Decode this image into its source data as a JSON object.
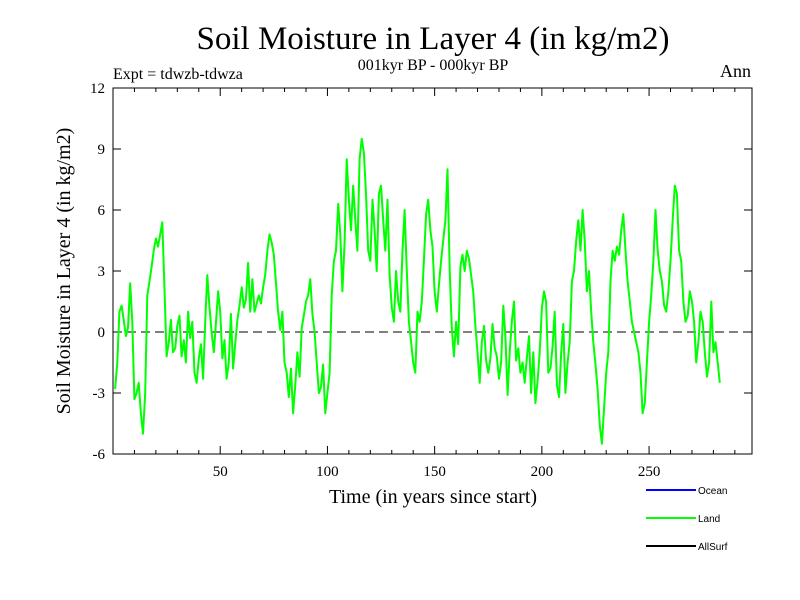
{
  "chart_data": {
    "type": "line",
    "title": "Soil Moisture in Layer 4 (in kg/m2)",
    "subtitle": "001kyr BP - 000kyr BP",
    "experiment_label": "Expt = tdwzb-tdwza",
    "season_label": "Ann",
    "xlabel": "Time (in years since start)",
    "ylabel": "Soil Moisture in Layer 4 (in kg/m2)",
    "xlim": [
      0,
      298
    ],
    "ylim": [
      -6,
      12
    ],
    "x_ticks": [
      50,
      100,
      150,
      200,
      250
    ],
    "y_ticks": [
      -6,
      -3,
      0,
      3,
      6,
      9,
      12
    ],
    "zero_line": true,
    "legend": [
      "Ocean",
      "Land",
      "AllSurf"
    ],
    "legend_position": "bottom-right",
    "series": [
      {
        "name": "Ocean",
        "color": "#0000ff",
        "values": []
      },
      {
        "name": "Land",
        "color": "#00ff00",
        "x_start": 1,
        "x_step": 1,
        "values": [
          -2.8,
          -1.5,
          1.0,
          1.3,
          0.6,
          -0.2,
          0.2,
          2.4,
          0.5,
          -3.3,
          -3.0,
          -2.5,
          -4.0,
          -5.0,
          -3.0,
          1.8,
          2.5,
          3.2,
          4.0,
          4.6,
          4.2,
          4.8,
          5.4,
          2.1,
          -1.2,
          -0.5,
          0.6,
          -1.0,
          -0.8,
          0.3,
          0.8,
          -1.2,
          -0.4,
          -1.5,
          1.0,
          -0.3,
          0.5,
          -2.0,
          -2.5,
          -1.3,
          -0.6,
          -2.3,
          0.5,
          2.8,
          1.2,
          0.0,
          -1.0,
          0.4,
          2.0,
          1.0,
          -1.3,
          -0.4,
          -2.3,
          -1.5,
          0.9,
          -1.8,
          -0.6,
          0.6,
          1.3,
          2.2,
          1.2,
          1.6,
          3.4,
          1.0,
          2.6,
          1.0,
          1.4,
          1.8,
          1.4,
          2.2,
          2.8,
          4.0,
          4.8,
          4.4,
          3.8,
          2.4,
          1.0,
          0.1,
          1.0,
          -1.5,
          -2.0,
          -3.2,
          -1.8,
          -4.0,
          -2.6,
          -1.0,
          -2.2,
          0.2,
          0.8,
          1.5,
          1.8,
          2.6,
          0.9,
          0.0,
          -1.5,
          -3.0,
          -2.7,
          -1.6,
          -4.0,
          -3.0,
          -2.0,
          1.8,
          3.5,
          4.0,
          6.3,
          4.8,
          2.0,
          4.4,
          8.5,
          6.5,
          5.0,
          7.2,
          5.5,
          4.0,
          8.5,
          9.5,
          8.8,
          6.8,
          4.0,
          3.5,
          6.5,
          5.0,
          3.0,
          6.8,
          7.2,
          5.5,
          4.0,
          6.5,
          2.8,
          1.2,
          0.5,
          3.0,
          1.5,
          1.0,
          4.0,
          6.0,
          3.0,
          0.5,
          -0.5,
          -1.5,
          -2.0,
          1.0,
          0.5,
          1.5,
          3.5,
          5.8,
          6.5,
          5.0,
          4.2,
          2.0,
          1.0,
          2.3,
          3.5,
          4.5,
          5.5,
          8.0,
          3.0,
          0.2,
          -1.2,
          0.5,
          -0.6,
          3.2,
          3.8,
          3.0,
          4.0,
          3.6,
          2.8,
          2.0,
          0.3,
          -1.0,
          -2.5,
          -0.5,
          0.3,
          -1.4,
          -2.0,
          -1.3,
          0.4,
          -0.8,
          -1.2,
          -2.3,
          -1.5,
          1.3,
          -0.2,
          -3.1,
          -1.0,
          0.5,
          1.5,
          -1.4,
          -0.8,
          -2.0,
          -1.5,
          -2.5,
          -1.3,
          -0.2,
          -3.0,
          -1.0,
          -3.5,
          -2.4,
          -1.0,
          1.2,
          2.0,
          1.5,
          -2.0,
          -1.8,
          -0.7,
          1.0,
          -2.6,
          -3.2,
          -1.0,
          0.4,
          -3.0,
          -1.5,
          -0.5,
          2.5,
          3.0,
          4.5,
          5.5,
          4.0,
          6.0,
          4.5,
          2.0,
          3.0,
          1.0,
          -0.5,
          -1.6,
          -2.8,
          -4.6,
          -5.5,
          -3.8,
          -2.0,
          -1.0,
          2.5,
          4.0,
          3.5,
          4.2,
          3.8,
          5.0,
          5.8,
          4.0,
          2.5,
          1.5,
          0.5,
          0.0,
          -0.5,
          -1.0,
          -2.0,
          -4.0,
          -3.5,
          -1.5,
          0.5,
          1.8,
          3.5,
          6.0,
          4.0,
          3.0,
          2.5,
          1.3,
          1.0,
          2.0,
          3.5,
          5.5,
          7.2,
          6.8,
          4.0,
          3.5,
          1.5,
          0.5,
          0.8,
          2.0,
          1.5,
          0.5,
          -1.5,
          -0.5,
          1.0,
          0.5,
          -1.0,
          -2.2,
          -1.5,
          1.5,
          -1.0,
          -0.5,
          -1.5,
          -2.5
        ]
      },
      {
        "name": "AllSurf",
        "color": "#000000",
        "values": []
      }
    ]
  }
}
